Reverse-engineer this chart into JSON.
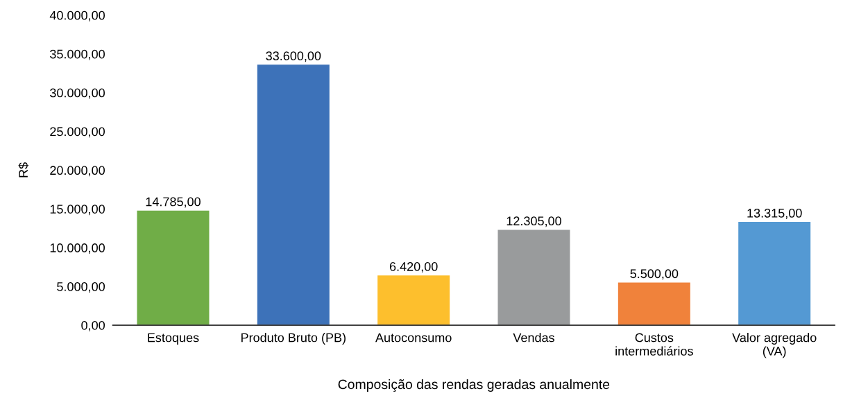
{
  "chart_data": {
    "type": "bar",
    "xlabel": "Composição das rendas geradas anualmente",
    "ylabel": "R$",
    "categories": [
      "Estoques",
      "Produto Bruto (PB)",
      "Autoconsumo",
      "Vendas",
      "Custos\nintermediários",
      "Valor agregado\n(VA)"
    ],
    "values": [
      14785,
      33600,
      6420,
      12305,
      5500,
      13315
    ],
    "colors": [
      "#70ad47",
      "#3d72b9",
      "#fdbf2d",
      "#999b9c",
      "#f0823b",
      "#5499d3"
    ],
    "value_labels": [
      "14.785,00",
      "33.600,00",
      "6.420,00",
      "12.305,00",
      "5.500,00",
      "13.315,00"
    ],
    "ylim": [
      0,
      40000
    ],
    "yticks": [
      {
        "value": 0,
        "label": "0,00"
      },
      {
        "value": 5000,
        "label": "5.000,00"
      },
      {
        "value": 10000,
        "label": "10.000,00"
      },
      {
        "value": 15000,
        "label": "15.000,00"
      },
      {
        "value": 20000,
        "label": "20.000,00"
      },
      {
        "value": 25000,
        "label": "25.000,00"
      },
      {
        "value": 30000,
        "label": "30.000,00"
      },
      {
        "value": 35000,
        "label": "35.000,00"
      },
      {
        "value": 40000,
        "label": "40.000,00"
      }
    ],
    "grid": false,
    "legend": false
  }
}
